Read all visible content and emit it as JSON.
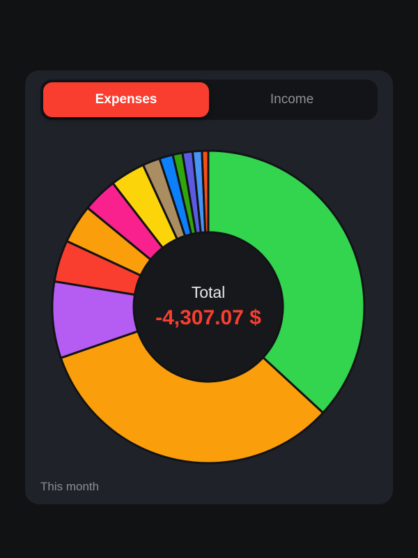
{
  "segmented_control": {
    "options": [
      {
        "label": "Expenses",
        "selected": true
      },
      {
        "label": "Income",
        "selected": false
      }
    ],
    "selected_color": "#f93e30",
    "track_color": "#131418"
  },
  "footer": {
    "period_label": "This month"
  },
  "colors": {
    "page_bg": "#111214",
    "card_bg": "#1f2329",
    "accent_red": "#f93e30"
  },
  "chart_data": {
    "type": "pie",
    "subtype": "donut",
    "center_label": "Total",
    "center_value": "-4,307.07 $",
    "total_value_numeric": -4307.07,
    "start_angle_deg": -90,
    "direction": "clockwise",
    "hole_color": "#17181c",
    "divider_color": "#121316",
    "legend": "none",
    "slices": [
      {
        "color": "#33d44e",
        "percent": 36.8
      },
      {
        "color": "#fa9e0b",
        "percent": 32.8
      },
      {
        "color": "#b55cf2",
        "percent": 7.9
      },
      {
        "color": "#f93e30",
        "percent": 4.3
      },
      {
        "color": "#fa9e0b",
        "percent": 4.0
      },
      {
        "color": "#f9218e",
        "percent": 3.6
      },
      {
        "color": "#fcd40a",
        "percent": 3.6
      },
      {
        "color": "#ab8d62",
        "percent": 1.8
      },
      {
        "color": "#0c80fb",
        "percent": 1.4
      },
      {
        "color": "#2fa50e",
        "percent": 1.0
      },
      {
        "color": "#5b5be2",
        "percent": 1.05
      },
      {
        "color": "#4694f6",
        "percent": 0.95
      },
      {
        "color": "#fa4f13",
        "percent": 0.65
      }
    ]
  }
}
